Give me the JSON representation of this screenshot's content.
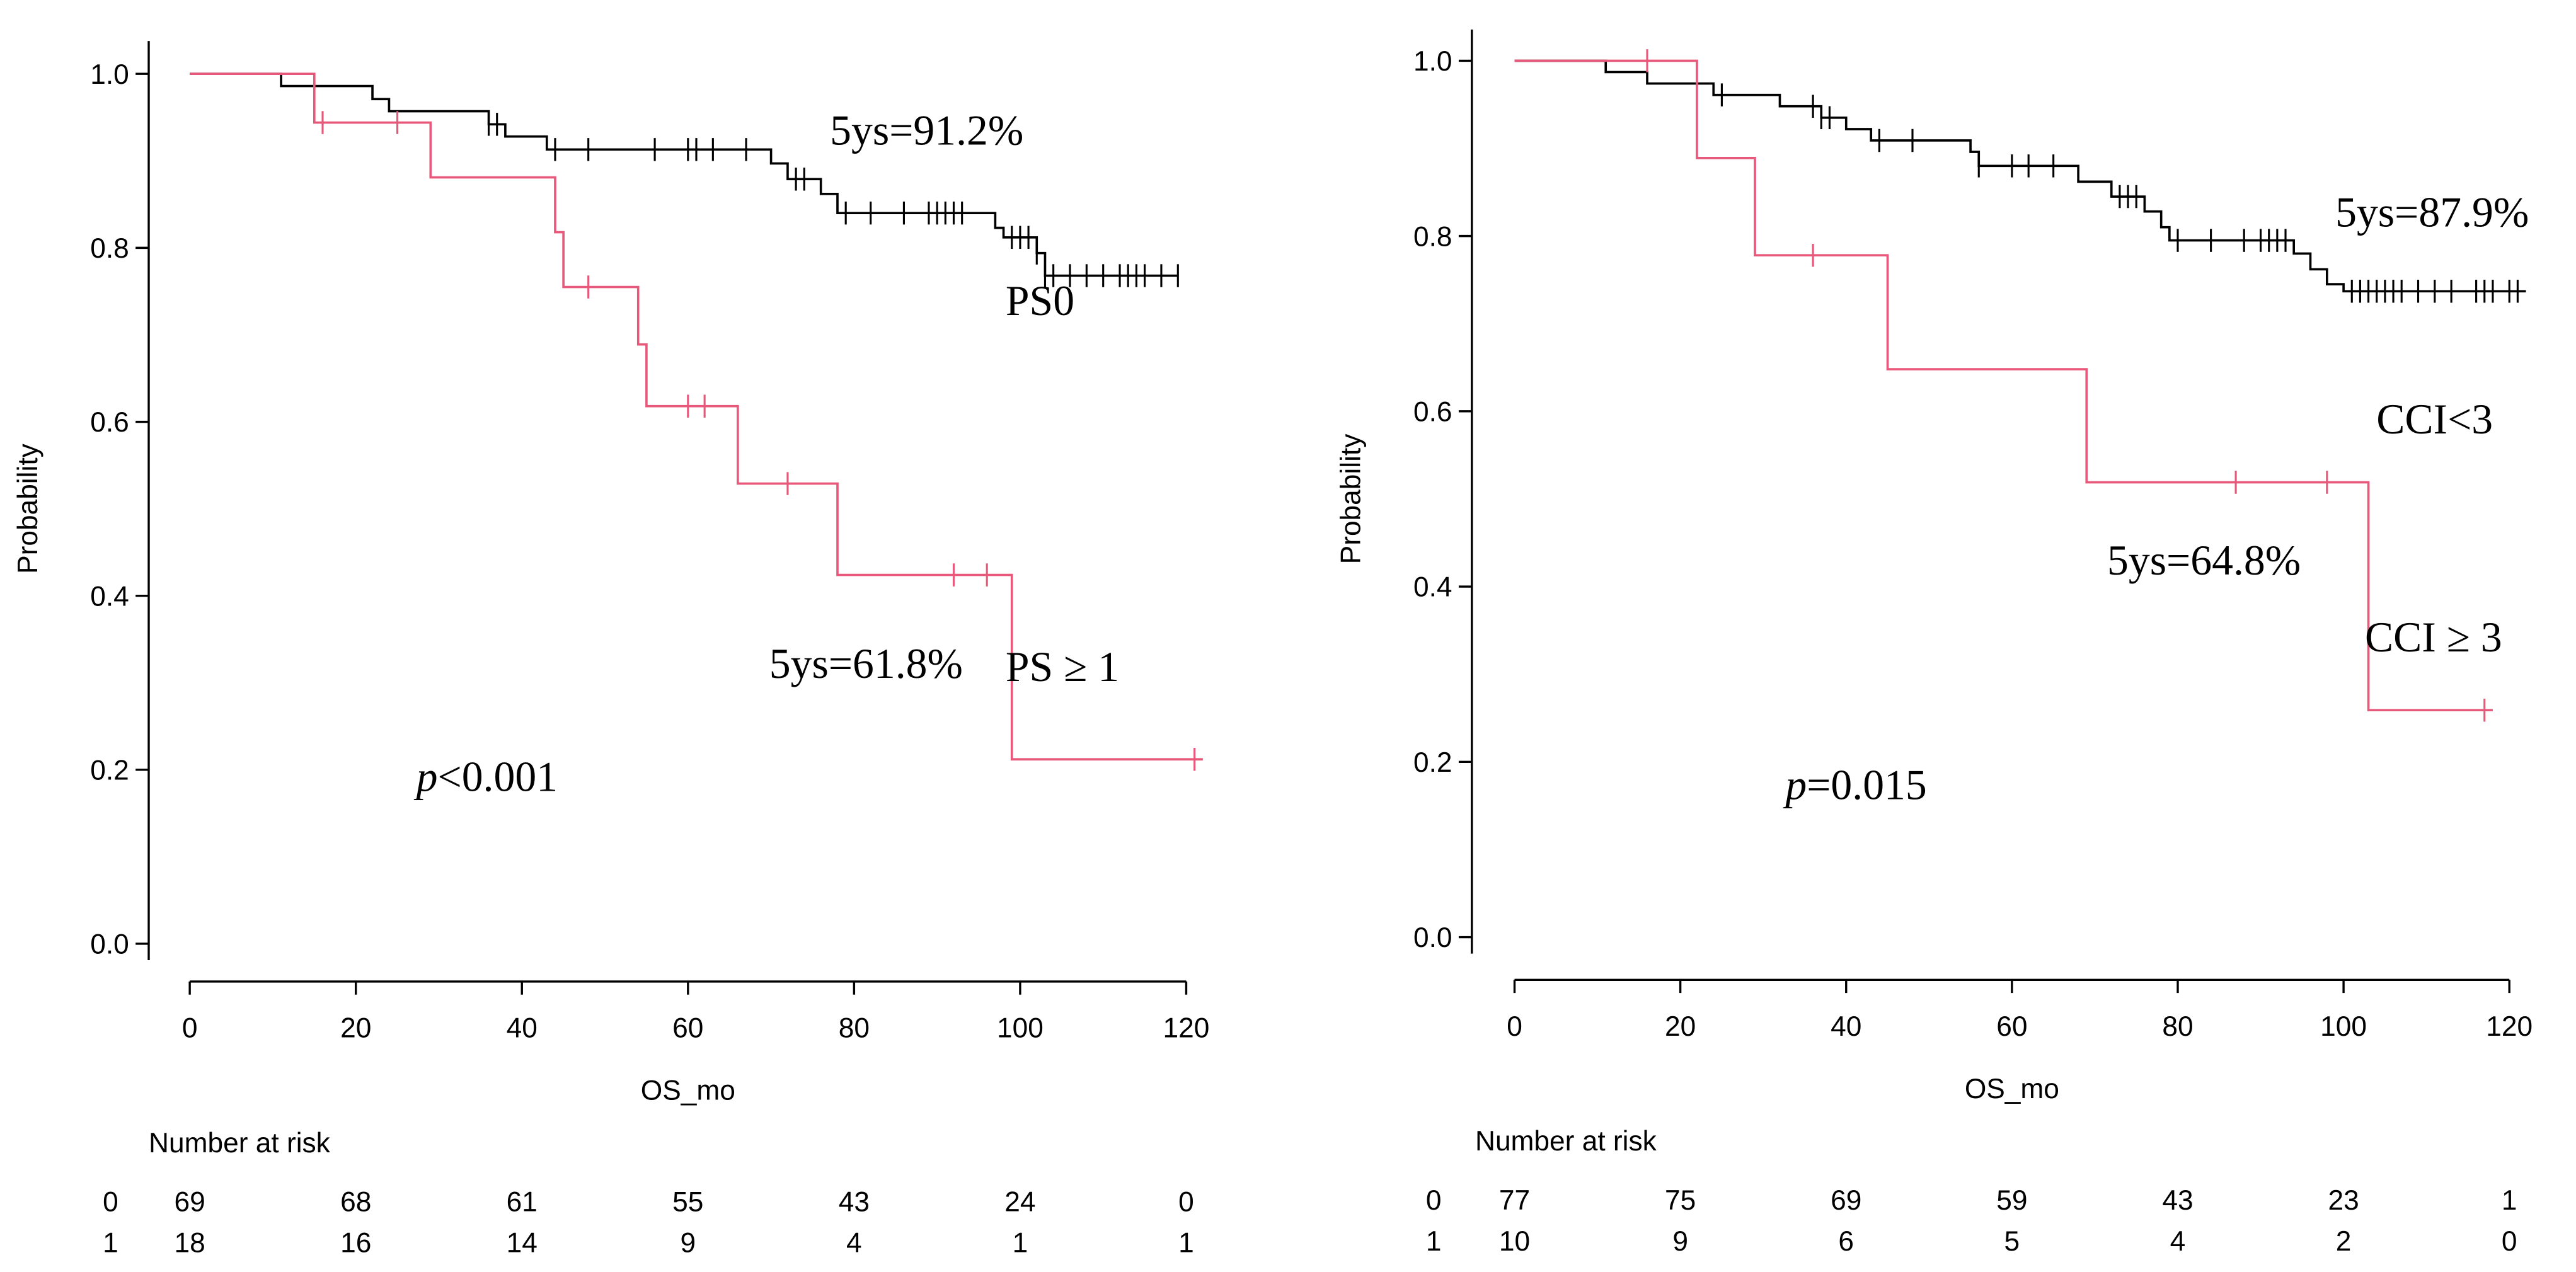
{
  "chart_data": [
    {
      "type": "line",
      "subtype": "kaplan-meier",
      "xlabel": "OS_mo",
      "ylabel": "Probability",
      "xlim": [
        0,
        120
      ],
      "ylim": [
        0,
        1
      ],
      "x_ticks": [
        "0",
        "20",
        "40",
        "60",
        "80",
        "100",
        "120"
      ],
      "y_ticks": [
        "0.0",
        "0.2",
        "0.4",
        "0.6",
        "0.8",
        "1.0"
      ],
      "grid": false,
      "p_value": {
        "prefix": "p",
        "text": "<0.001"
      },
      "series": [
        {
          "name": "PS0",
          "label": "PS0",
          "color": "#000000",
          "five_year_label": "5ys=91.2%",
          "steps": [
            [
              0,
              1.0
            ],
            [
              11,
              0.986
            ],
            [
              22,
              0.971
            ],
            [
              24,
              0.957
            ],
            [
              36,
              0.942
            ],
            [
              38,
              0.928
            ],
            [
              43,
              0.913
            ],
            [
              70,
              0.897
            ],
            [
              72,
              0.879
            ],
            [
              76,
              0.862
            ],
            [
              78,
              0.84
            ],
            [
              97,
              0.823
            ],
            [
              98,
              0.812
            ],
            [
              102,
              0.794
            ],
            [
              103,
              0.768
            ]
          ],
          "end": 119,
          "censors": [
            36,
            37,
            44,
            48,
            56,
            60,
            61,
            63,
            67,
            73,
            74,
            79,
            82,
            86,
            89,
            90,
            91,
            92,
            93,
            99,
            100,
            101,
            102,
            103,
            104,
            106,
            108,
            110,
            112,
            113,
            114,
            115,
            117,
            119
          ]
        },
        {
          "name": "PS ≥ 1",
          "label": "PS ≥ 1",
          "color": "#E8587A",
          "five_year_label": "5ys=61.8%",
          "steps": [
            [
              0,
              1.0
            ],
            [
              15,
              0.944
            ],
            [
              29,
              0.881
            ],
            [
              44,
              0.818
            ],
            [
              45,
              0.755
            ],
            [
              54,
              0.689
            ],
            [
              55,
              0.618
            ],
            [
              66,
              0.529
            ],
            [
              78,
              0.424
            ],
            [
              99,
              0.212
            ]
          ],
          "end": 122,
          "censors": [
            16,
            25,
            48,
            60,
            62,
            72,
            92,
            96,
            121
          ]
        }
      ],
      "risk_table": {
        "title": "Number at risk",
        "rows": [
          {
            "group": "0",
            "values": [
              "69",
              "68",
              "61",
              "55",
              "43",
              "24",
              "0"
            ]
          },
          {
            "group": "1",
            "values": [
              "18",
              "16",
              "14",
              "9",
              "4",
              "1",
              "1"
            ]
          }
        ]
      }
    },
    {
      "type": "line",
      "subtype": "kaplan-meier",
      "xlabel": "OS_mo",
      "ylabel": "Probability",
      "xlim": [
        0,
        120
      ],
      "ylim": [
        0,
        1
      ],
      "x_ticks": [
        "0",
        "20",
        "40",
        "60",
        "80",
        "100",
        "120"
      ],
      "y_ticks": [
        "0.0",
        "0.2",
        "0.4",
        "0.6",
        "0.8",
        "1.0"
      ],
      "grid": false,
      "p_value": {
        "prefix": "p",
        "text": "=0.015"
      },
      "series": [
        {
          "name": "CCI<3",
          "label": "CCI<3",
          "color": "#000000",
          "five_year_label": "5ys=87.9%",
          "steps": [
            [
              0,
              1.0
            ],
            [
              11,
              0.987
            ],
            [
              16,
              0.974
            ],
            [
              24,
              0.961
            ],
            [
              32,
              0.948
            ],
            [
              37,
              0.935
            ],
            [
              40,
              0.922
            ],
            [
              43,
              0.909
            ],
            [
              55,
              0.896
            ],
            [
              56,
              0.88
            ],
            [
              68,
              0.862
            ],
            [
              72,
              0.845
            ],
            [
              76,
              0.828
            ],
            [
              78,
              0.81
            ],
            [
              79,
              0.795
            ],
            [
              94,
              0.78
            ],
            [
              96,
              0.762
            ],
            [
              98,
              0.745
            ],
            [
              100,
              0.737
            ]
          ],
          "end": 122,
          "censors": [
            25,
            36,
            37,
            38,
            44,
            48,
            56,
            60,
            62,
            65,
            73,
            74,
            75,
            80,
            84,
            88,
            90,
            91,
            92,
            93,
            101,
            102,
            103,
            104,
            105,
            106,
            107,
            109,
            111,
            113,
            116,
            117,
            118,
            120,
            121
          ],
          "tail_label_note": ""
        },
        {
          "name": "CCI ≥ 3",
          "label": "CCI ≥ 3",
          "color": "#E8587A",
          "five_year_label": "5ys=64.8%",
          "steps": [
            [
              0,
              1.0
            ],
            [
              22,
              0.889
            ],
            [
              29,
              0.778
            ],
            [
              45,
              0.648
            ],
            [
              69,
              0.519
            ],
            [
              103,
              0.259
            ]
          ],
          "end": 118,
          "censors": [
            16,
            36,
            87,
            98,
            117
          ]
        }
      ],
      "risk_table": {
        "title": "Number at risk",
        "rows": [
          {
            "group": "0",
            "values": [
              "77",
              "75",
              "69",
              "59",
              "43",
              "23",
              "1"
            ]
          },
          {
            "group": "1",
            "values": [
              "10",
              "9",
              "6",
              "5",
              "4",
              "2",
              "0"
            ]
          }
        ]
      }
    }
  ]
}
